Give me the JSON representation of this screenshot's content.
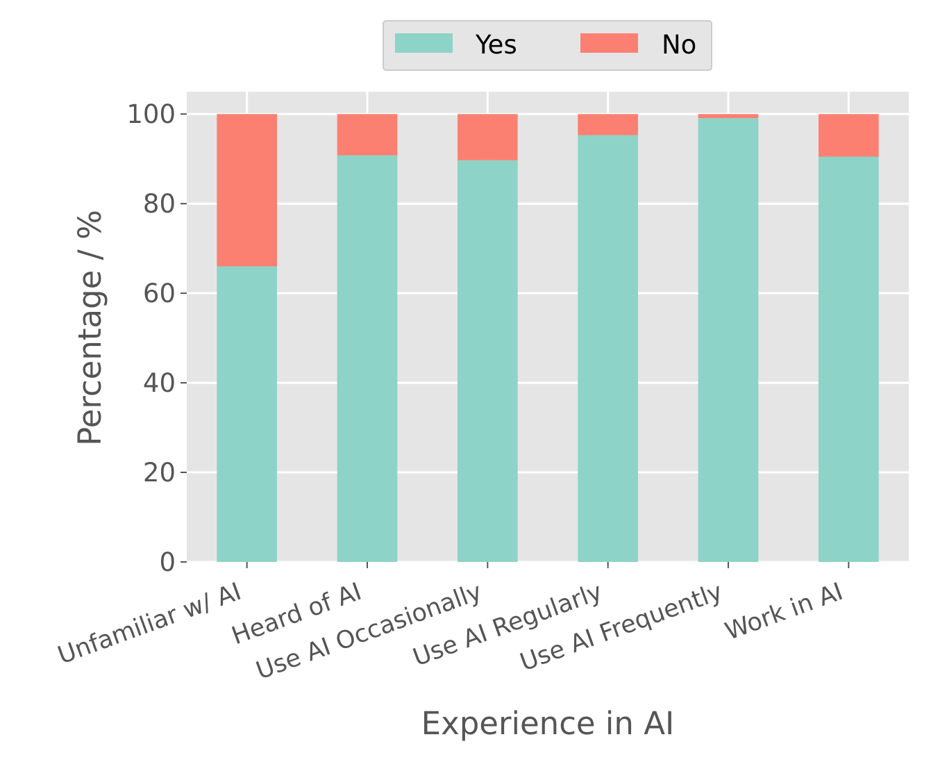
{
  "chart_data": {
    "type": "bar",
    "stacked": true,
    "xlabel": "Experience in AI",
    "ylabel": "Percentage / %",
    "ylim": [
      0,
      105
    ],
    "yticks": [
      0,
      20,
      40,
      60,
      80,
      100
    ],
    "grid": true,
    "legend_position": "top-center",
    "categories": [
      "Unfamiliar w/ AI",
      "Heard of AI",
      "Use AI Occasionally",
      "Use AI Regularly",
      "Use AI Frequently",
      "Work in AI"
    ],
    "series": [
      {
        "name": "Yes",
        "color": "#8ed3c7",
        "values": [
          66,
          90.8,
          89.7,
          95.3,
          99.1,
          90.5
        ]
      },
      {
        "name": "No",
        "color": "#fb8072",
        "values": [
          34,
          9.2,
          10.3,
          4.7,
          0.9,
          9.5
        ]
      }
    ],
    "colors": {
      "plot_background": "#e5e5e5",
      "grid": "#ffffff"
    }
  }
}
